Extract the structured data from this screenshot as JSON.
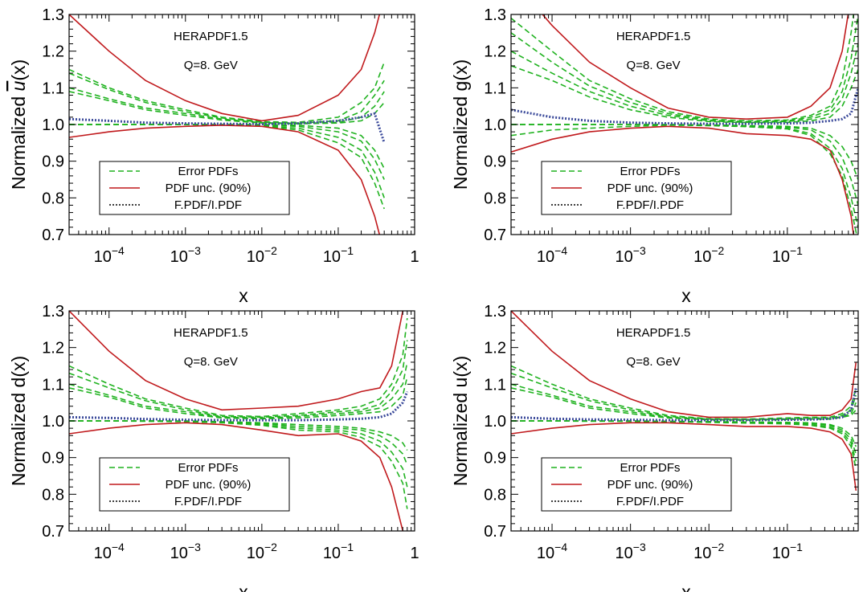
{
  "figure": {
    "colors": {
      "error_pdfs": "#1fb21f",
      "pdf_unc": "#c0191c",
      "ratio": "#3c4b9b",
      "axis": "#000000"
    },
    "legend_entries": [
      "Error PDFs",
      "PDF unc. (90%)",
      "F.PDF/I.PDF"
    ],
    "annotation_lines": [
      "HERAPDF1.5",
      "Q=8. GeV"
    ],
    "xlabel": "x",
    "x_tick_labels": [
      {
        "base": "10",
        "exp": "−4"
      },
      {
        "base": "10",
        "exp": "−3"
      },
      {
        "base": "10",
        "exp": "−2"
      },
      {
        "base": "10",
        "exp": "−1"
      },
      {
        "base": "1",
        "exp": ""
      }
    ],
    "y_tick_labels": [
      "0.7",
      "0.8",
      "0.9",
      "1.0",
      "1.1",
      "1.2",
      "1.3"
    ]
  },
  "chart_data": [
    {
      "type": "line",
      "panel": "top-left",
      "title": "",
      "ylabel_base": "Normalized ",
      "ylabel_fn": "u",
      "ylabel_bar": true,
      "ylabel_arg": "(x)",
      "xlabel": "x",
      "xscale": "log",
      "xlim": [
        3e-05,
        1
      ],
      "ylim": [
        0.7,
        1.3
      ],
      "x_ticks": [
        0.0001,
        0.001,
        0.01,
        0.1,
        1
      ],
      "y_ticks": [
        0.7,
        0.8,
        0.9,
        1.0,
        1.1,
        1.2,
        1.3
      ],
      "annotations": [
        "HERAPDF1.5",
        "Q=8. GeV"
      ],
      "legend": [
        "Error PDFs",
        "PDF unc. (90%)",
        "F.PDF/I.PDF"
      ],
      "legend_position": "bottom-left",
      "x": [
        3e-05,
        0.0001,
        0.0003,
        0.001,
        0.003,
        0.01,
        0.03,
        0.1,
        0.2,
        0.3,
        0.4
      ],
      "pdf_unc_upper": [
        1.3,
        1.2,
        1.12,
        1.065,
        1.03,
        1.01,
        1.025,
        1.08,
        1.15,
        1.25,
        1.35
      ],
      "pdf_unc_lower": [
        0.965,
        0.98,
        0.99,
        0.995,
        0.998,
        0.995,
        0.98,
        0.93,
        0.85,
        0.75,
        0.65
      ],
      "error_pdfs": [
        [
          1.15,
          1.1,
          1.065,
          1.04,
          1.02,
          1.008,
          1.006,
          1.02,
          1.06,
          1.1,
          1.17
        ],
        [
          1.14,
          1.095,
          1.06,
          1.035,
          1.018,
          1.006,
          1.004,
          1.01,
          1.035,
          1.08,
          1.12
        ],
        [
          1.1,
          1.07,
          1.045,
          1.03,
          1.015,
          1.005,
          1.003,
          1.006,
          1.02,
          1.05,
          1.09
        ],
        [
          1.09,
          1.065,
          1.04,
          1.025,
          1.012,
          1.004,
          1.002,
          1.004,
          1.01,
          1.03,
          1.06
        ],
        [
          1.0,
          1.0,
          1.0,
          1.0,
          1.0,
          1.0,
          0.998,
          0.99,
          0.97,
          0.93,
          0.88
        ],
        [
          1.0,
          1.0,
          1.0,
          1.0,
          1.0,
          0.999,
          0.995,
          0.98,
          0.955,
          0.905,
          0.85
        ],
        [
          1.0,
          1.0,
          1.0,
          1.0,
          0.999,
          0.997,
          0.99,
          0.965,
          0.93,
          0.87,
          0.8
        ],
        [
          1.0,
          1.0,
          1.0,
          1.0,
          0.999,
          0.996,
          0.985,
          0.95,
          0.91,
          0.84,
          0.77
        ]
      ],
      "ratio": [
        1.015,
        1.01,
        1.005,
        1.003,
        1.002,
        1.001,
        1.003,
        1.01,
        1.02,
        1.03,
        0.95
      ]
    },
    {
      "type": "line",
      "panel": "top-right",
      "title": "",
      "ylabel_base": "Normalized ",
      "ylabel_fn": "g",
      "ylabel_bar": false,
      "ylabel_arg": "(x)",
      "xlabel": "x",
      "xscale": "log",
      "xlim": [
        3e-05,
        0.8
      ],
      "ylim": [
        0.7,
        1.3
      ],
      "x_ticks": [
        0.0001,
        0.001,
        0.01,
        0.1
      ],
      "y_ticks": [
        0.7,
        0.8,
        0.9,
        1.0,
        1.1,
        1.2,
        1.3
      ],
      "annotations": [
        "HERAPDF1.5",
        "Q=8. GeV"
      ],
      "legend": [
        "Error PDFs",
        "PDF unc. (90%)",
        "F.PDF/I.PDF"
      ],
      "legend_position": "bottom-left",
      "x": [
        3e-05,
        0.0001,
        0.0003,
        0.001,
        0.003,
        0.01,
        0.03,
        0.1,
        0.2,
        0.35,
        0.5,
        0.65,
        0.8
      ],
      "pdf_unc_upper": [
        1.4,
        1.27,
        1.17,
        1.1,
        1.045,
        1.02,
        1.015,
        1.02,
        1.05,
        1.1,
        1.2,
        1.35,
        1.5
      ],
      "pdf_unc_lower": [
        0.925,
        0.96,
        0.98,
        0.99,
        0.995,
        0.99,
        0.975,
        0.97,
        0.96,
        0.93,
        0.85,
        0.75,
        0.6
      ],
      "error_pdfs": [
        [
          1.29,
          1.2,
          1.12,
          1.07,
          1.035,
          1.015,
          1.01,
          1.012,
          1.025,
          1.05,
          1.12,
          1.25,
          1.4
        ],
        [
          1.25,
          1.17,
          1.105,
          1.06,
          1.03,
          1.012,
          1.008,
          1.01,
          1.02,
          1.04,
          1.09,
          1.18,
          1.3
        ],
        [
          1.2,
          1.14,
          1.09,
          1.05,
          1.025,
          1.01,
          1.006,
          1.008,
          1.015,
          1.03,
          1.07,
          1.14,
          1.22
        ],
        [
          1.16,
          1.12,
          1.075,
          1.04,
          1.02,
          1.008,
          1.005,
          1.006,
          1.01,
          1.02,
          1.05,
          1.1,
          1.15
        ],
        [
          1.0,
          1.0,
          1.0,
          1.0,
          1.0,
          0.999,
          0.997,
          0.995,
          0.99,
          0.97,
          0.94,
          0.9,
          0.85
        ],
        [
          1.0,
          1.0,
          1.0,
          1.0,
          1.0,
          0.999,
          0.996,
          0.993,
          0.985,
          0.955,
          0.91,
          0.85,
          0.78
        ],
        [
          1.0,
          1.0,
          1.0,
          1.0,
          0.999,
          0.998,
          0.995,
          0.99,
          0.975,
          0.935,
          0.88,
          0.8,
          0.72
        ],
        [
          0.97,
          0.985,
          0.99,
          0.995,
          0.998,
          0.997,
          0.994,
          0.988,
          0.97,
          0.92,
          0.86,
          0.77,
          0.68
        ]
      ],
      "ratio": [
        1.04,
        1.02,
        1.01,
        1.005,
        1.003,
        1.002,
        1.002,
        1.003,
        1.005,
        1.01,
        1.015,
        1.03,
        1.1
      ]
    },
    {
      "type": "line",
      "panel": "bottom-left",
      "title": "",
      "ylabel_base": "Normalized ",
      "ylabel_fn": "d",
      "ylabel_bar": false,
      "ylabel_arg": "(x)",
      "xlabel": "x",
      "xscale": "log",
      "xlim": [
        3e-05,
        1
      ],
      "ylim": [
        0.7,
        1.3
      ],
      "x_ticks": [
        0.0001,
        0.001,
        0.01,
        0.1,
        1
      ],
      "y_ticks": [
        0.7,
        0.8,
        0.9,
        1.0,
        1.1,
        1.2,
        1.3
      ],
      "annotations": [
        "HERAPDF1.5",
        "Q=8. GeV"
      ],
      "legend": [
        "Error PDFs",
        "PDF unc. (90%)",
        "F.PDF/I.PDF"
      ],
      "legend_position": "bottom-left",
      "x": [
        3e-05,
        0.0001,
        0.0003,
        0.001,
        0.003,
        0.01,
        0.03,
        0.1,
        0.2,
        0.35,
        0.5,
        0.7,
        0.8
      ],
      "pdf_unc_upper": [
        1.3,
        1.19,
        1.11,
        1.06,
        1.03,
        1.035,
        1.04,
        1.06,
        1.08,
        1.09,
        1.15,
        1.3,
        1.45
      ],
      "pdf_unc_lower": [
        0.965,
        0.98,
        0.99,
        0.995,
        0.99,
        0.975,
        0.96,
        0.965,
        0.945,
        0.9,
        0.82,
        0.7,
        0.6
      ],
      "error_pdfs": [
        [
          1.15,
          1.1,
          1.06,
          1.035,
          1.015,
          1.012,
          1.02,
          1.03,
          1.04,
          1.06,
          1.1,
          1.18,
          1.28
        ],
        [
          1.13,
          1.09,
          1.055,
          1.03,
          1.012,
          1.01,
          1.015,
          1.025,
          1.03,
          1.045,
          1.08,
          1.14,
          1.22
        ],
        [
          1.1,
          1.07,
          1.04,
          1.025,
          1.01,
          1.008,
          1.012,
          1.02,
          1.025,
          1.035,
          1.06,
          1.1,
          1.16
        ],
        [
          1.09,
          1.065,
          1.035,
          1.02,
          1.008,
          1.006,
          1.008,
          1.015,
          1.02,
          1.025,
          1.04,
          1.07,
          1.12
        ],
        [
          1.0,
          1.0,
          1.0,
          1.0,
          0.998,
          0.995,
          0.99,
          0.985,
          0.98,
          0.97,
          0.96,
          0.94,
          0.92
        ],
        [
          1.0,
          1.0,
          1.0,
          0.999,
          0.997,
          0.993,
          0.985,
          0.98,
          0.975,
          0.96,
          0.94,
          0.91,
          0.88
        ],
        [
          1.0,
          1.0,
          1.0,
          0.999,
          0.996,
          0.99,
          0.98,
          0.975,
          0.965,
          0.945,
          0.915,
          0.87,
          0.82
        ],
        [
          1.0,
          1.0,
          0.999,
          0.998,
          0.995,
          0.988,
          0.975,
          0.97,
          0.955,
          0.93,
          0.89,
          0.83,
          0.76
        ]
      ],
      "ratio": [
        1.01,
        1.008,
        1.005,
        1.003,
        1.002,
        1.002,
        1.002,
        1.004,
        1.006,
        1.01,
        1.02,
        1.05,
        1.08
      ]
    },
    {
      "type": "line",
      "panel": "bottom-right",
      "title": "",
      "ylabel_base": "Normalized ",
      "ylabel_fn": "u",
      "ylabel_bar": false,
      "ylabel_arg": "(x)",
      "xlabel": "x",
      "xscale": "log",
      "xlim": [
        3e-05,
        0.8
      ],
      "ylim": [
        0.7,
        1.3
      ],
      "x_ticks": [
        0.0001,
        0.001,
        0.01,
        0.1
      ],
      "y_ticks": [
        0.7,
        0.8,
        0.9,
        1.0,
        1.1,
        1.2,
        1.3
      ],
      "annotations": [
        "HERAPDF1.5",
        "Q=8. GeV"
      ],
      "legend": [
        "Error PDFs",
        "PDF unc. (90%)",
        "F.PDF/I.PDF"
      ],
      "legend_position": "bottom-left",
      "x": [
        3e-05,
        0.0001,
        0.0003,
        0.001,
        0.003,
        0.01,
        0.03,
        0.1,
        0.2,
        0.35,
        0.5,
        0.65,
        0.75
      ],
      "pdf_unc_upper": [
        1.3,
        1.19,
        1.11,
        1.06,
        1.025,
        1.01,
        1.01,
        1.02,
        1.015,
        1.015,
        1.03,
        1.06,
        1.16
      ],
      "pdf_unc_lower": [
        0.965,
        0.98,
        0.99,
        0.995,
        0.995,
        0.99,
        0.985,
        0.985,
        0.98,
        0.97,
        0.95,
        0.91,
        0.81
      ],
      "error_pdfs": [
        [
          1.15,
          1.1,
          1.06,
          1.035,
          1.015,
          1.006,
          1.005,
          1.008,
          1.01,
          1.01,
          1.02,
          1.04,
          1.09
        ],
        [
          1.13,
          1.09,
          1.055,
          1.03,
          1.012,
          1.005,
          1.004,
          1.006,
          1.008,
          1.008,
          1.015,
          1.03,
          1.07
        ],
        [
          1.1,
          1.07,
          1.04,
          1.025,
          1.01,
          1.004,
          1.003,
          1.005,
          1.006,
          1.006,
          1.012,
          1.02,
          1.05
        ],
        [
          1.09,
          1.065,
          1.035,
          1.02,
          1.008,
          1.003,
          1.002,
          1.004,
          1.005,
          1.005,
          1.01,
          1.015,
          1.03
        ],
        [
          1.0,
          1.0,
          1.0,
          1.0,
          0.999,
          0.998,
          0.997,
          0.996,
          0.995,
          0.99,
          0.98,
          0.96,
          0.93
        ],
        [
          1.0,
          1.0,
          1.0,
          1.0,
          0.999,
          0.998,
          0.996,
          0.995,
          0.993,
          0.987,
          0.975,
          0.95,
          0.91
        ],
        [
          1.0,
          1.0,
          1.0,
          0.999,
          0.998,
          0.997,
          0.995,
          0.994,
          0.99,
          0.983,
          0.97,
          0.94,
          0.89
        ],
        [
          1.0,
          1.0,
          0.999,
          0.999,
          0.998,
          0.996,
          0.994,
          0.992,
          0.988,
          0.98,
          0.965,
          0.93,
          0.87
        ]
      ],
      "ratio": [
        1.01,
        1.006,
        1.004,
        1.003,
        1.002,
        1.002,
        1.002,
        1.003,
        1.004,
        1.006,
        1.01,
        1.03,
        1.09
      ]
    }
  ]
}
